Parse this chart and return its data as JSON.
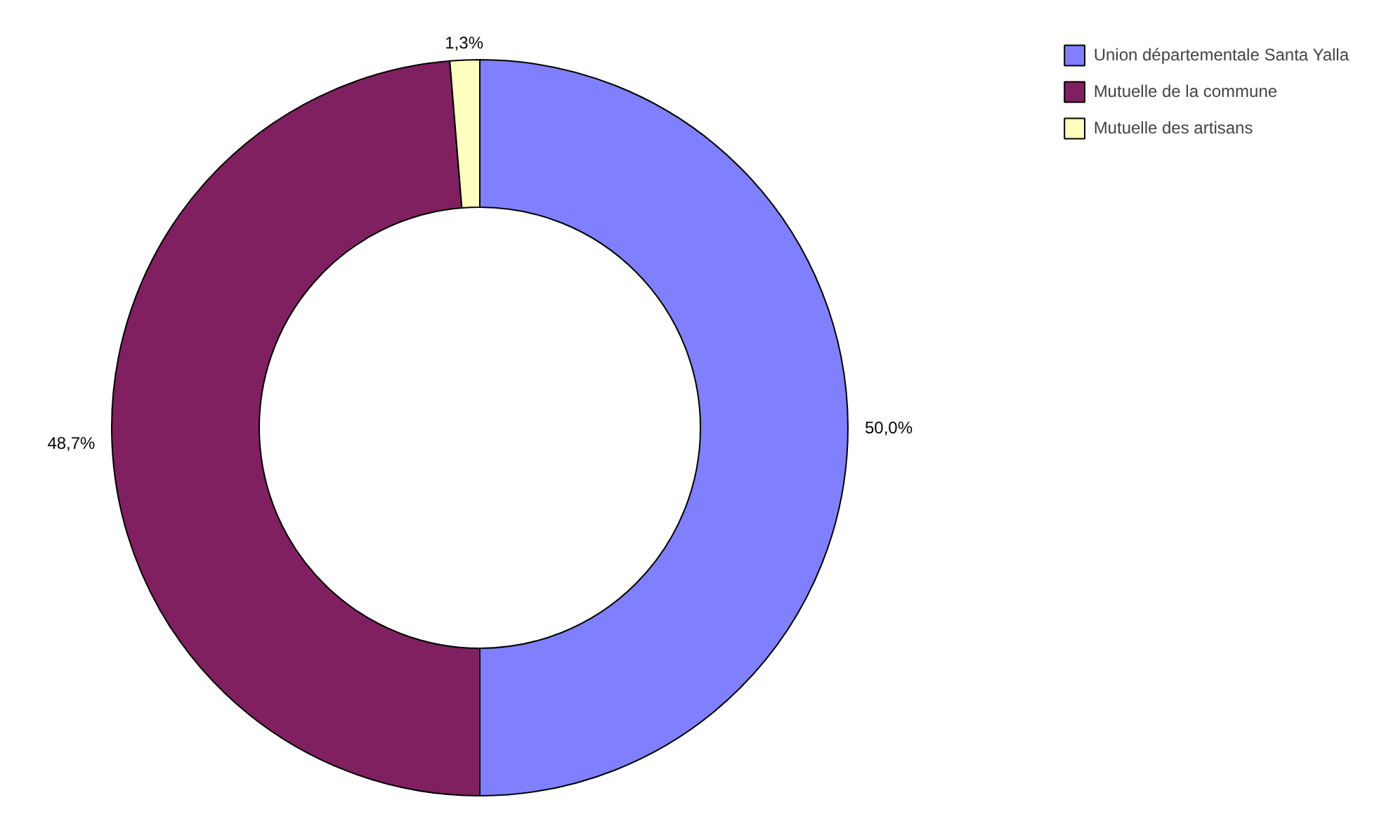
{
  "chart_data": {
    "type": "donut",
    "categories": [
      "Union départementale Santa Yalla",
      "Mutuelle de la commune",
      "Mutuelle des artisans"
    ],
    "values": [
      50.0,
      48.7,
      1.3
    ],
    "value_labels": [
      "50,0%",
      "48,7%",
      "1,3%"
    ],
    "colors": [
      "#8080ff",
      "#802060",
      "#ffffc0"
    ],
    "legend": "top right"
  }
}
